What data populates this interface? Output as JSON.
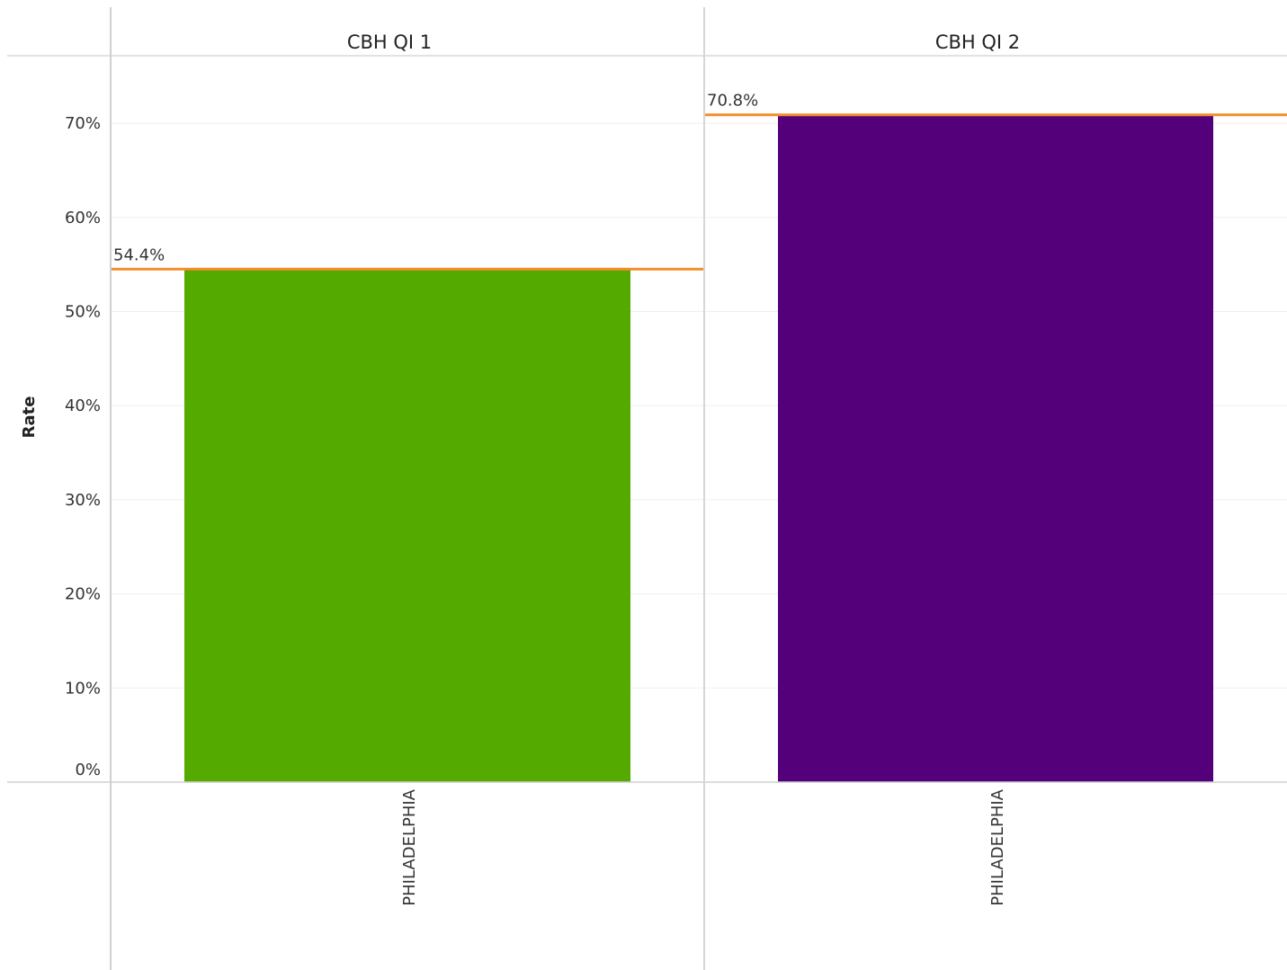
{
  "chart_data": {
    "type": "bar",
    "ylabel": "Rate",
    "ylim": [
      0,
      77
    ],
    "y_ticks": [
      0,
      10,
      20,
      30,
      40,
      50,
      60,
      70
    ],
    "y_tick_labels": [
      "0%",
      "10%",
      "20%",
      "30%",
      "40%",
      "50%",
      "60%",
      "70%"
    ],
    "grid": true,
    "panels": [
      {
        "title": "CBH QI 1",
        "categories": [
          "PHILADELPHIA"
        ],
        "values": [
          54.4
        ],
        "color": "#55aa00",
        "reference_line": {
          "value": 54.4,
          "label": "54.4%",
          "color": "#f28e2b"
        }
      },
      {
        "title": "CBH QI 2",
        "categories": [
          "PHILADELPHIA"
        ],
        "values": [
          70.8
        ],
        "color": "#54007a",
        "reference_line": {
          "value": 70.8,
          "label": "70.8%",
          "color": "#f28e2b"
        }
      }
    ]
  }
}
